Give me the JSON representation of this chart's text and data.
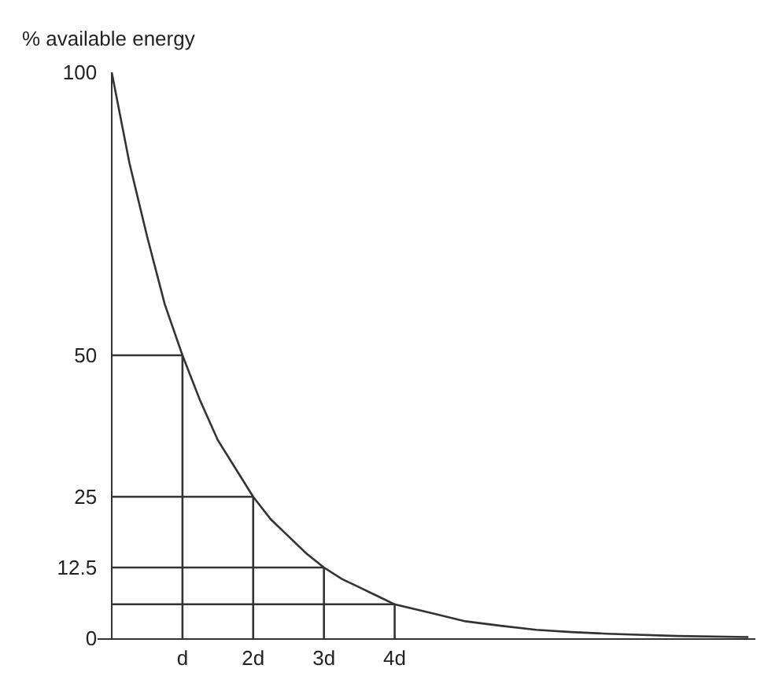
{
  "chart_data": {
    "type": "line",
    "ylabel": "% available energy",
    "xlim": [
      -0.2,
      9.1
    ],
    "xticks": [
      {
        "value": 1,
        "label": "d"
      },
      {
        "value": 2,
        "label": "2d"
      },
      {
        "value": 3,
        "label": "3d"
      },
      {
        "value": 4,
        "label": "4d"
      }
    ],
    "ylim": [
      0,
      100
    ],
    "yticks": [
      0,
      12.5,
      25,
      50,
      100
    ],
    "grid": false,
    "marker": "none",
    "line_style": "solid",
    "series": [
      {
        "color": "#333333",
        "x": [
          0,
          0.25,
          0.5,
          0.75,
          1,
          1.25,
          1.5,
          1.75,
          2,
          2.25,
          2.5,
          2.75,
          3,
          3.25,
          3.5,
          3.75,
          4,
          4.5,
          5,
          5.5,
          6,
          6.5,
          7,
          8,
          9
        ],
        "values": [
          100,
          84,
          71,
          59,
          50,
          42,
          35,
          30,
          25,
          21,
          18,
          15,
          12.5,
          10.5,
          9,
          7.5,
          6,
          4.5,
          3,
          2.2,
          1.5,
          1.1,
          0.8,
          0.4,
          0.2
        ]
      },
      {
        "color": "#333333",
        "x": [
          0,
          1
        ],
        "values": [
          50,
          50
        ]
      },
      {
        "color": "#333333",
        "x": [
          1,
          1
        ],
        "values": [
          0,
          50
        ]
      },
      {
        "color": "#333333",
        "x": [
          0,
          2
        ],
        "values": [
          25,
          25
        ]
      },
      {
        "color": "#333333",
        "x": [
          2,
          2
        ],
        "values": [
          0,
          25
        ]
      },
      {
        "color": "#333333",
        "x": [
          0,
          3
        ],
        "values": [
          12.5,
          12.5
        ]
      },
      {
        "color": "#333333",
        "x": [
          3,
          3
        ],
        "values": [
          0,
          12.5
        ]
      },
      {
        "color": "#333333",
        "x": [
          0,
          4
        ],
        "values": [
          6,
          6
        ]
      },
      {
        "color": "#333333",
        "x": [
          4,
          4
        ],
        "values": [
          0,
          6
        ]
      }
    ]
  }
}
